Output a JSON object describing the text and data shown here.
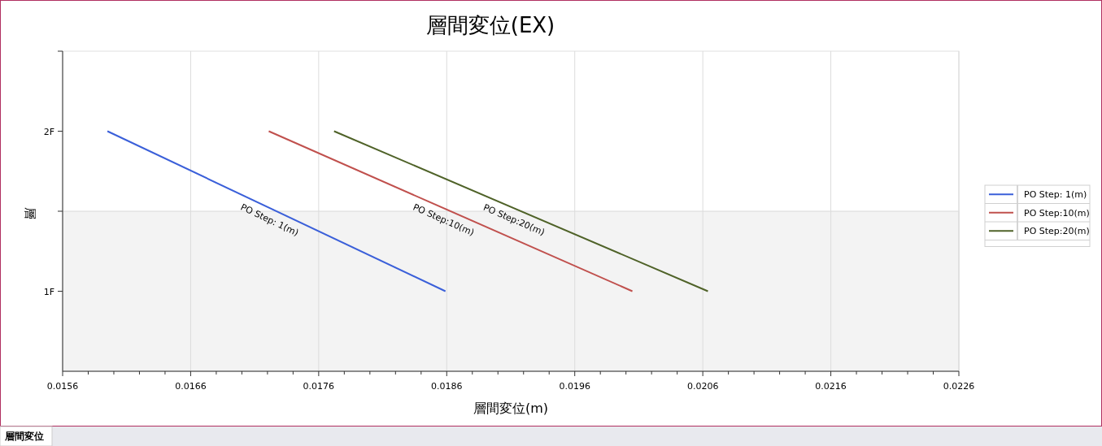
{
  "chart_data": {
    "type": "line",
    "title": "層間変位(EX)",
    "xlabel": "層間変位(m)",
    "ylabel": "層",
    "orientation": "horizontal",
    "categories": [
      "2F",
      "1F"
    ],
    "xlim": [
      0.0156,
      0.0226
    ],
    "xticks": [
      0.0156,
      {
        "value": 0.0158,
        "label": null
      },
      {
        "value": 0.016,
        "label": null
      },
      {
        "value": 0.0162,
        "label": null
      },
      {
        "value": 0.0164,
        "label": null
      },
      0.0166,
      {
        "value": 0.0168,
        "label": null
      },
      {
        "value": 0.017,
        "label": null
      },
      {
        "value": 0.0172,
        "label": null
      },
      {
        "value": 0.0174,
        "label": null
      },
      0.0176,
      {
        "value": 0.0178,
        "label": null
      },
      {
        "value": 0.018,
        "label": null
      },
      {
        "value": 0.0182,
        "label": null
      },
      {
        "value": 0.0184,
        "label": null
      },
      0.0186,
      {
        "value": 0.0188,
        "label": null
      },
      {
        "value": 0.019,
        "label": null
      },
      {
        "value": 0.0192,
        "label": null
      },
      {
        "value": 0.0194,
        "label": null
      },
      0.0196,
      {
        "value": 0.0198,
        "label": null
      },
      {
        "value": 0.02,
        "label": null
      },
      {
        "value": 0.0202,
        "label": null
      },
      {
        "value": 0.0204,
        "label": null
      },
      0.0206,
      {
        "value": 0.0208,
        "label": null
      },
      {
        "value": 0.021,
        "label": null
      },
      {
        "value": 0.0212,
        "label": null
      },
      {
        "value": 0.0214,
        "label": null
      },
      0.0216,
      {
        "value": 0.0218,
        "label": null
      },
      {
        "value": 0.022,
        "label": null
      },
      {
        "value": 0.0222,
        "label": null
      },
      {
        "value": 0.0224,
        "label": null
      },
      0.0226
    ],
    "grid": "x",
    "legend": "right",
    "marker": "none",
    "line_style": "solid",
    "bands": [
      {
        "axis": "y",
        "from": "1F",
        "to": "1F",
        "color": "#f3f3f3"
      }
    ],
    "series": [
      {
        "name": "PO Step: 1(m)",
        "color": "#3a5fd9",
        "values": [
          0.01595,
          0.01859
        ]
      },
      {
        "name": "PO Step:10(m)",
        "color": "#c0504d",
        "values": [
          0.01721,
          0.02005
        ]
      },
      {
        "name": "PO Step:20(m)",
        "color": "#4f6228",
        "values": [
          0.01772,
          0.02064
        ]
      }
    ],
    "annotations": [
      "層間変位"
    ]
  }
}
